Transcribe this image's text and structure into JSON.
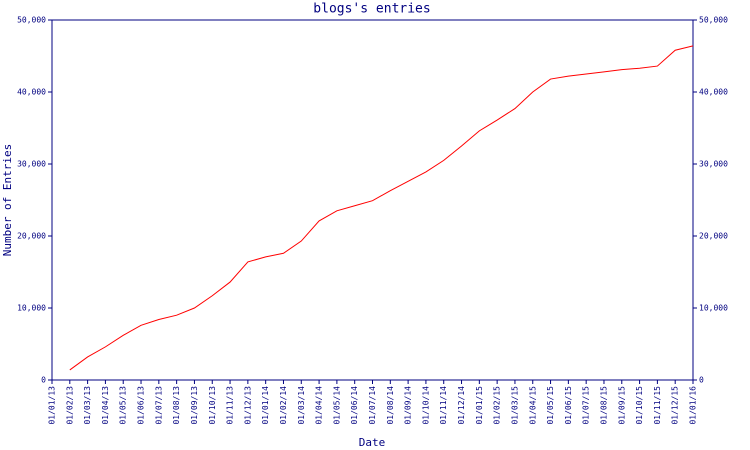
{
  "chart_data": {
    "type": "line",
    "title": "blogs's entries",
    "x_label": "Date",
    "y_label": "Number of Entries",
    "x": [
      "01/01/13",
      "01/02/13",
      "01/03/13",
      "01/04/13",
      "01/05/13",
      "01/06/13",
      "01/07/13",
      "01/08/13",
      "01/09/13",
      "01/10/13",
      "01/11/13",
      "01/12/13",
      "01/01/14",
      "01/02/14",
      "01/03/14",
      "01/04/14",
      "01/05/14",
      "01/06/14",
      "01/07/14",
      "01/08/14",
      "01/09/14",
      "01/10/14",
      "01/11/14",
      "01/12/14",
      "01/01/15",
      "01/02/15",
      "01/03/15",
      "01/04/15",
      "01/05/15",
      "01/06/15",
      "01/07/15",
      "01/08/15",
      "01/09/15",
      "01/10/15",
      "01/11/15",
      "01/12/15",
      "01/01/16"
    ],
    "series": [
      {
        "name": "entries",
        "color": "#ff0000",
        "values": [
          null,
          1400,
          3200,
          4600,
          6200,
          7600,
          8400,
          9000,
          10000,
          11700,
          13600,
          16400,
          17100,
          17600,
          19300,
          22100,
          23500,
          24200,
          24900,
          26300,
          27600,
          28900,
          30500,
          32500,
          34600,
          36100,
          37700,
          40000,
          41800,
          42200,
          42500,
          42800,
          43100,
          43300,
          43600,
          45800,
          46400
        ]
      }
    ],
    "ylim": [
      0,
      50000
    ],
    "yticks": [
      0,
      {
        "value": 10000,
        "label": "10,000"
      },
      {
        "value": 20000,
        "label": "20,000"
      },
      {
        "value": 30000,
        "label": "30,000"
      },
      {
        "value": 40000,
        "label": "40,000"
      },
      {
        "value": 50000,
        "label": "50,000"
      }
    ],
    "axis_color": "#000080"
  }
}
